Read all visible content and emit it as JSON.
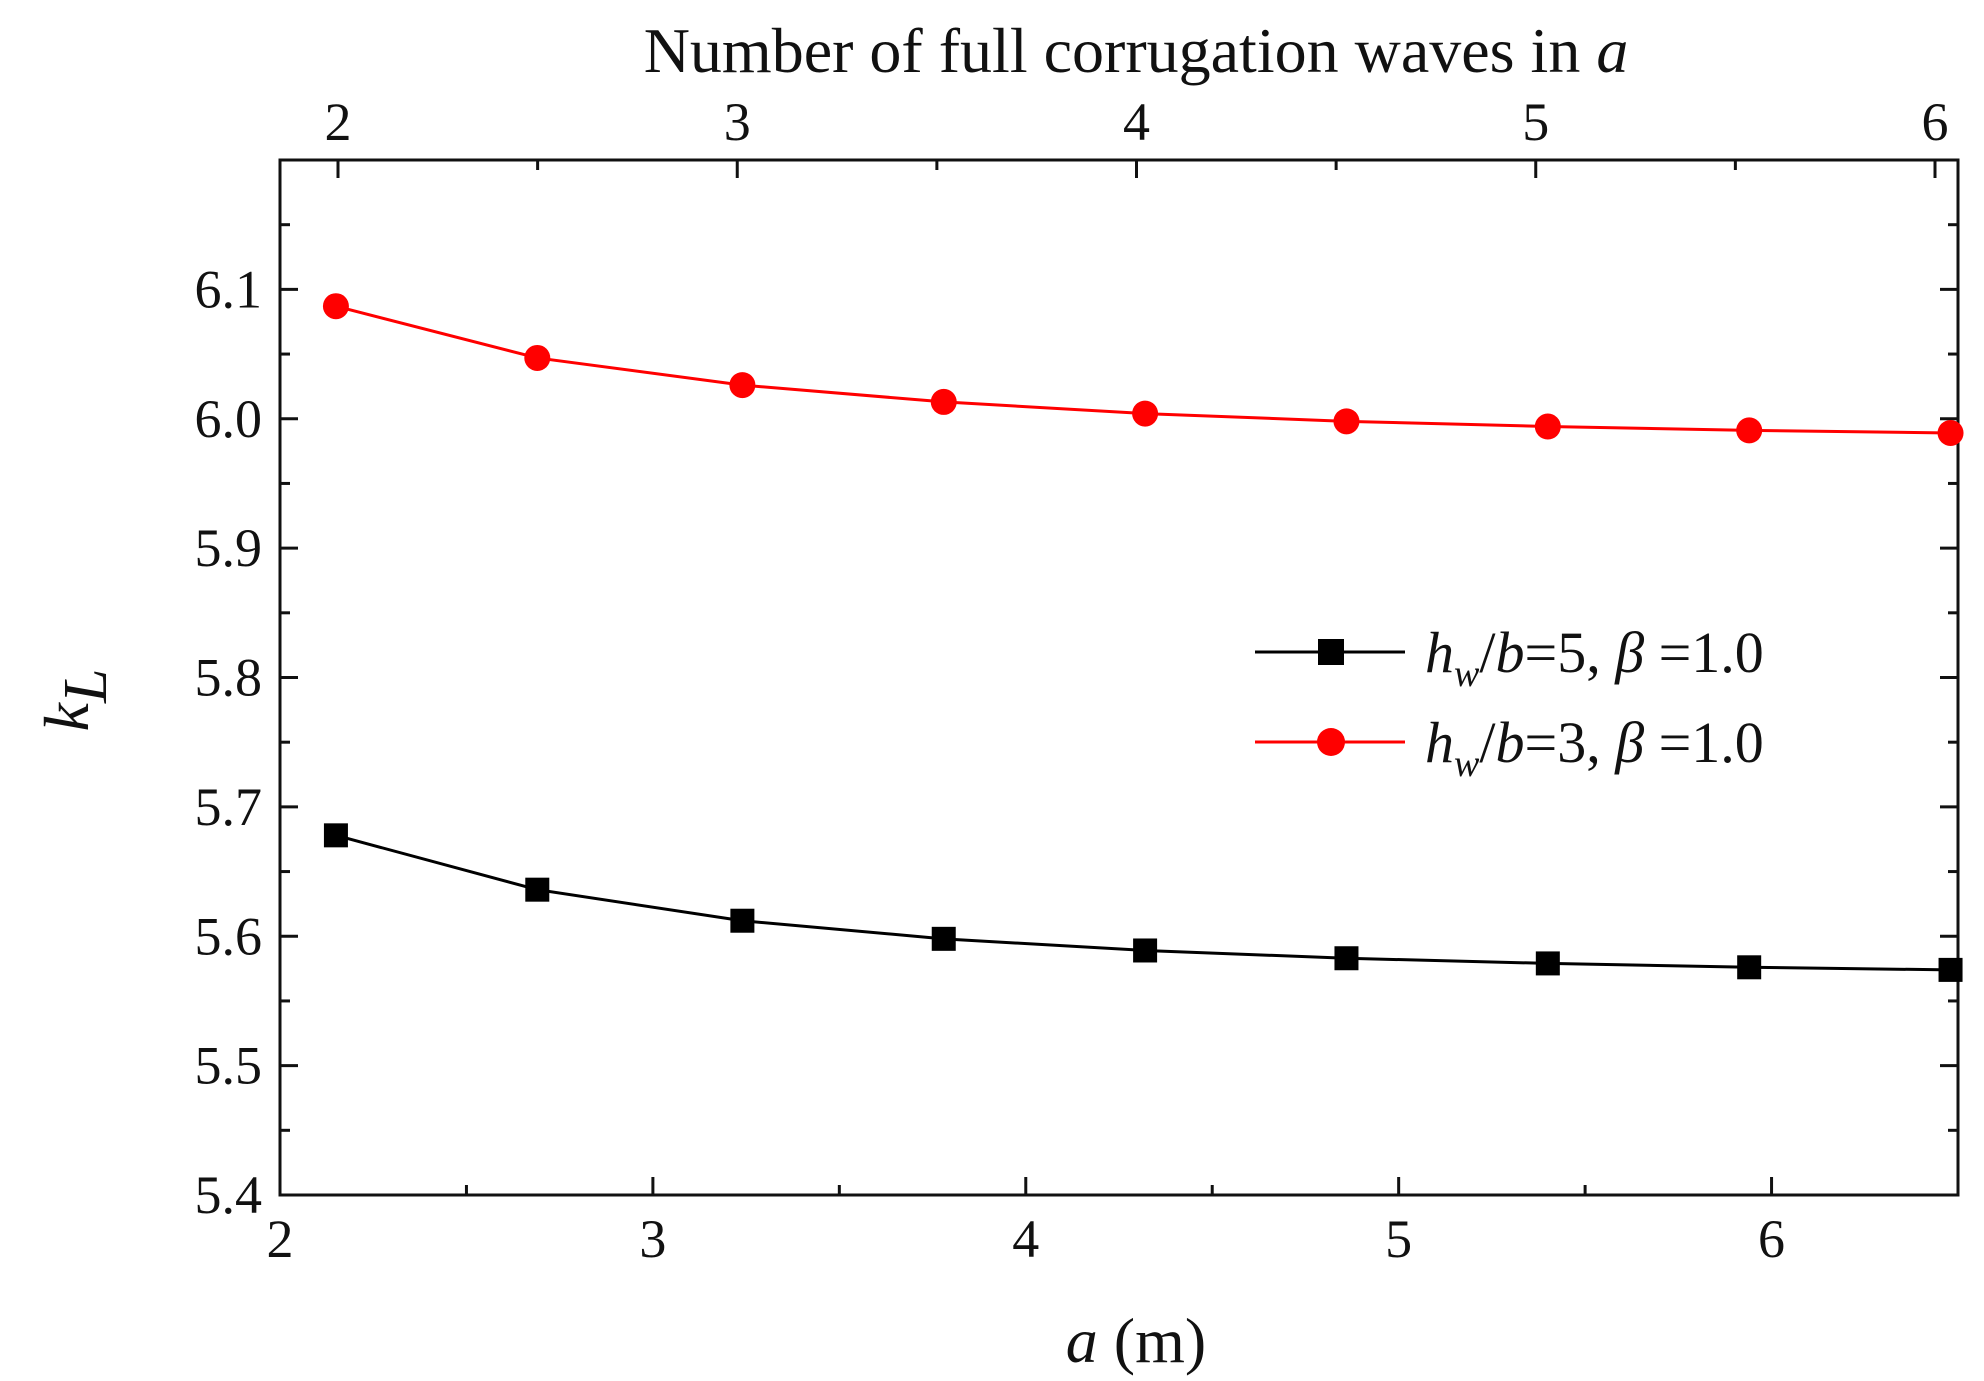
{
  "chart_data": {
    "type": "line",
    "title": "",
    "xlabel_italic": "a",
    "xlabel_rest": " (m)",
    "ylabel_main": "k",
    "ylabel_sub": "L",
    "top_axis_label": "Number of full corrugation waves in ",
    "top_axis_label_italic": "a",
    "xlim": [
      2,
      6.5
    ],
    "ylim": [
      5.4,
      6.2
    ],
    "top_xlim": [
      2,
      6
    ],
    "x_ticks": [
      2,
      3,
      4,
      5,
      6
    ],
    "x_tick_labels": [
      "2",
      "3",
      "4",
      "5",
      "6"
    ],
    "y_ticks": [
      5.4,
      5.5,
      5.6,
      5.7,
      5.8,
      5.9,
      6.0,
      6.1
    ],
    "y_tick_labels": [
      "5.4",
      "5.5",
      "5.6",
      "5.7",
      "5.8",
      "5.9",
      "6.0",
      "6.1"
    ],
    "top_ticks": [
      2,
      3,
      4,
      5,
      6
    ],
    "top_tick_labels": [
      "2",
      "3",
      "4",
      "5",
      "6"
    ],
    "grid": false,
    "legend_position": "center-right",
    "x": [
      2.15,
      2.69,
      3.24,
      3.78,
      4.32,
      4.86,
      5.4,
      5.94,
      6.48
    ],
    "series": [
      {
        "name": "h_w/b=5, β =1.0",
        "legend_parts": [
          "h",
          "w",
          "/",
          "b",
          "=5,  ",
          "β",
          "  =1.0"
        ],
        "marker": "square",
        "color": "#000000",
        "values": [
          5.678,
          5.636,
          5.612,
          5.598,
          5.589,
          5.583,
          5.579,
          5.576,
          5.574
        ]
      },
      {
        "name": "h_w/b=3, β =1.0",
        "legend_parts": [
          "h",
          "w",
          "/",
          "b",
          "=3,  ",
          "β",
          "  =1.0"
        ],
        "marker": "circle",
        "color": "#ff0000",
        "values": [
          6.087,
          6.047,
          6.026,
          6.013,
          6.004,
          5.998,
          5.994,
          5.991,
          5.989
        ]
      }
    ]
  }
}
